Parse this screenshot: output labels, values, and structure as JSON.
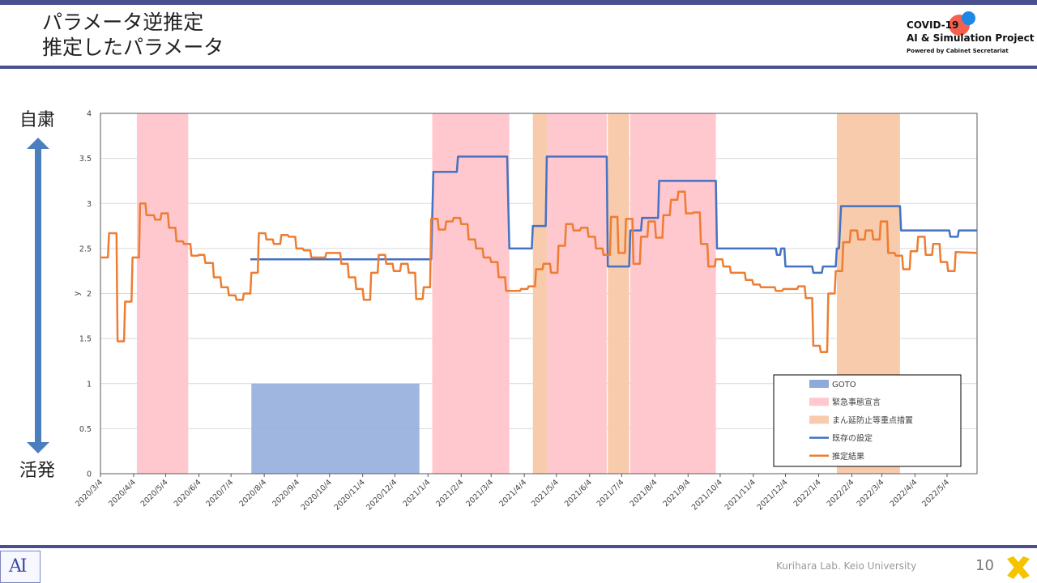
{
  "slide": {
    "title_line1": "パラメータ逆推定",
    "title_line2": "推定したパラメータ",
    "logo_line1": "COVID-19",
    "logo_line2": "AI & Simulation Project",
    "logo_line3": "Powered by Cabinet Secretariat",
    "side_top": "自粛",
    "side_bottom": "活発",
    "footer": "Kurihara Lab. Keio University",
    "page_number": "10",
    "footer_logo": "AI"
  },
  "colors": {
    "frame": "#4a4f8f",
    "goto": "#8eaadb",
    "emergency": "#ffc7ce",
    "priority": "#f8cbad",
    "existing": "#4472c4",
    "estimate": "#ed7d31",
    "arrow": "#4a7ebf"
  },
  "chart_data": {
    "type": "line",
    "ylabel": "y",
    "ylim": [
      0,
      4
    ],
    "yticks": [
      "0",
      "0.5",
      "1",
      "1.5",
      "2",
      "2.5",
      "3",
      "3.5",
      "4"
    ],
    "xlim": [
      "2020-03-04",
      "2022-06-01"
    ],
    "xticks": [
      "2020/3/4",
      "2020/4/4",
      "2020/5/4",
      "2020/6/4",
      "2020/7/4",
      "2020/8/4",
      "2020/9/4",
      "2020/10/4",
      "2020/11/4",
      "2020/12/4",
      "2021/1/4",
      "2021/2/4",
      "2021/3/4",
      "2021/4/4",
      "2021/5/4",
      "2021/6/4",
      "2021/7/4",
      "2021/8/4",
      "2021/9/4",
      "2021/10/4",
      "2021/11/4",
      "2021/12/4",
      "2022/1/4",
      "2022/2/4",
      "2022/3/4",
      "2022/4/4",
      "2022/5/4"
    ],
    "grid": true,
    "legend_position": "bottom-right",
    "legend": [
      "GOTO",
      "緊急事態宣言",
      "まん延防止等重点措置",
      "既存の設定",
      "推定結果"
    ],
    "goto": {
      "name": "GOTO",
      "start": "2020-07-23",
      "end": "2020-12-27",
      "value": 1
    },
    "emergency_periods": [
      {
        "start": "2020-04-07",
        "end": "2020-05-25"
      },
      {
        "start": "2021-01-08",
        "end": "2021-03-21"
      },
      {
        "start": "2021-04-25",
        "end": "2021-06-20"
      },
      {
        "start": "2021-07-12",
        "end": "2021-09-30"
      }
    ],
    "priority_periods": [
      {
        "start": "2021-04-12",
        "end": "2021-04-25"
      },
      {
        "start": "2021-06-21",
        "end": "2021-07-11"
      },
      {
        "start": "2022-01-21",
        "end": "2022-03-21"
      }
    ],
    "series": [
      {
        "name": "既存の設定",
        "points": [
          [
            "2020-07-22",
            2.38
          ],
          [
            "2021-01-07",
            2.38
          ],
          [
            "2021-01-09",
            3.35
          ],
          [
            "2021-01-31",
            3.35
          ],
          [
            "2021-02-01",
            3.52
          ],
          [
            "2021-03-19",
            3.52
          ],
          [
            "2021-03-21",
            2.5
          ],
          [
            "2021-04-11",
            2.5
          ],
          [
            "2021-04-12",
            2.75
          ],
          [
            "2021-04-24",
            2.75
          ],
          [
            "2021-04-25",
            3.52
          ],
          [
            "2021-06-20",
            3.52
          ],
          [
            "2021-06-21",
            2.3
          ],
          [
            "2021-07-11",
            2.3
          ],
          [
            "2021-07-12",
            2.7
          ],
          [
            "2021-07-22",
            2.7
          ],
          [
            "2021-07-23",
            2.84
          ],
          [
            "2021-08-07",
            2.84
          ],
          [
            "2021-08-08",
            3.25
          ],
          [
            "2021-09-30",
            3.25
          ],
          [
            "2021-10-01",
            2.5
          ],
          [
            "2021-11-25",
            2.5
          ],
          [
            "2021-11-26",
            2.43
          ],
          [
            "2021-11-29",
            2.43
          ],
          [
            "2021-11-30",
            2.5
          ],
          [
            "2021-12-03",
            2.5
          ],
          [
            "2021-12-04",
            2.3
          ],
          [
            "2021-12-29",
            2.3
          ],
          [
            "2021-12-30",
            2.23
          ],
          [
            "2022-01-07",
            2.23
          ],
          [
            "2022-01-08",
            2.3
          ],
          [
            "2022-01-20",
            2.3
          ],
          [
            "2022-01-21",
            2.5
          ],
          [
            "2022-01-23",
            2.5
          ],
          [
            "2022-01-25",
            2.97
          ],
          [
            "2022-03-21",
            2.97
          ],
          [
            "2022-03-22",
            2.7
          ],
          [
            "2022-05-06",
            2.7
          ],
          [
            "2022-05-07",
            2.63
          ],
          [
            "2022-05-14",
            2.63
          ],
          [
            "2022-05-15",
            2.7
          ],
          [
            "2022-06-01",
            2.7
          ]
        ]
      },
      {
        "name": "推定結果",
        "points": [
          [
            "2020-03-04",
            2.4
          ],
          [
            "2020-03-11",
            2.4
          ],
          [
            "2020-03-12",
            2.67
          ],
          [
            "2020-03-19",
            2.67
          ],
          [
            "2020-03-20",
            1.47
          ],
          [
            "2020-03-26",
            1.47
          ],
          [
            "2020-03-27",
            1.91
          ],
          [
            "2020-04-02",
            1.91
          ],
          [
            "2020-04-03",
            2.4
          ],
          [
            "2020-04-09",
            2.4
          ],
          [
            "2020-04-10",
            3.0
          ],
          [
            "2020-04-15",
            3.0
          ],
          [
            "2020-04-16",
            2.87
          ],
          [
            "2020-04-23",
            2.87
          ],
          [
            "2020-04-24",
            2.82
          ],
          [
            "2020-04-29",
            2.82
          ],
          [
            "2020-04-30",
            2.89
          ],
          [
            "2020-05-06",
            2.89
          ],
          [
            "2020-05-07",
            2.73
          ],
          [
            "2020-05-13",
            2.73
          ],
          [
            "2020-05-14",
            2.58
          ],
          [
            "2020-05-20",
            2.58
          ],
          [
            "2020-05-21",
            2.55
          ],
          [
            "2020-05-27",
            2.55
          ],
          [
            "2020-05-28",
            2.42
          ],
          [
            "2020-06-03",
            2.42
          ],
          [
            "2020-06-04",
            2.43
          ],
          [
            "2020-06-09",
            2.43
          ],
          [
            "2020-06-10",
            2.34
          ],
          [
            "2020-06-17",
            2.34
          ],
          [
            "2020-06-18",
            2.18
          ],
          [
            "2020-06-24",
            2.18
          ],
          [
            "2020-06-25",
            2.07
          ],
          [
            "2020-07-01",
            2.07
          ],
          [
            "2020-07-02",
            1.98
          ],
          [
            "2020-07-08",
            1.98
          ],
          [
            "2020-07-09",
            1.93
          ],
          [
            "2020-07-15",
            1.93
          ],
          [
            "2020-07-16",
            2.0
          ],
          [
            "2020-07-22",
            2.0
          ],
          [
            "2020-07-23",
            2.23
          ],
          [
            "2020-07-29",
            2.23
          ],
          [
            "2020-07-30",
            2.67
          ],
          [
            "2020-08-05",
            2.67
          ],
          [
            "2020-08-06",
            2.6
          ],
          [
            "2020-08-12",
            2.6
          ],
          [
            "2020-08-13",
            2.55
          ],
          [
            "2020-08-19",
            2.55
          ],
          [
            "2020-08-20",
            2.65
          ],
          [
            "2020-08-26",
            2.65
          ],
          [
            "2020-08-27",
            2.63
          ],
          [
            "2020-09-02",
            2.63
          ],
          [
            "2020-09-03",
            2.5
          ],
          [
            "2020-09-09",
            2.5
          ],
          [
            "2020-09-10",
            2.48
          ],
          [
            "2020-09-16",
            2.48
          ],
          [
            "2020-09-17",
            2.4
          ],
          [
            "2020-09-30",
            2.4
          ],
          [
            "2020-10-01",
            2.45
          ],
          [
            "2020-10-14",
            2.45
          ],
          [
            "2020-10-15",
            2.33
          ],
          [
            "2020-10-21",
            2.33
          ],
          [
            "2020-10-22",
            2.18
          ],
          [
            "2020-10-28",
            2.18
          ],
          [
            "2020-10-29",
            2.05
          ],
          [
            "2020-11-04",
            2.05
          ],
          [
            "2020-11-05",
            1.93
          ],
          [
            "2020-11-11",
            1.93
          ],
          [
            "2020-11-12",
            2.23
          ],
          [
            "2020-11-18",
            2.23
          ],
          [
            "2020-11-19",
            2.43
          ],
          [
            "2020-11-25",
            2.43
          ],
          [
            "2020-11-26",
            2.33
          ],
          [
            "2020-12-02",
            2.33
          ],
          [
            "2020-12-03",
            2.25
          ],
          [
            "2020-12-09",
            2.25
          ],
          [
            "2020-12-10",
            2.33
          ],
          [
            "2020-12-16",
            2.33
          ],
          [
            "2020-12-17",
            2.23
          ],
          [
            "2020-12-23",
            2.23
          ],
          [
            "2020-12-24",
            1.94
          ],
          [
            "2020-12-30",
            1.94
          ],
          [
            "2020-12-31",
            2.07
          ],
          [
            "2021-01-06",
            2.07
          ],
          [
            "2021-01-07",
            2.83
          ],
          [
            "2021-01-13",
            2.83
          ],
          [
            "2021-01-14",
            2.71
          ],
          [
            "2021-01-20",
            2.71
          ],
          [
            "2021-01-21",
            2.8
          ],
          [
            "2021-01-27",
            2.8
          ],
          [
            "2021-01-28",
            2.84
          ],
          [
            "2021-02-03",
            2.84
          ],
          [
            "2021-02-04",
            2.77
          ],
          [
            "2021-02-10",
            2.77
          ],
          [
            "2021-02-11",
            2.6
          ],
          [
            "2021-02-17",
            2.6
          ],
          [
            "2021-02-18",
            2.5
          ],
          [
            "2021-02-24",
            2.5
          ],
          [
            "2021-02-25",
            2.4
          ],
          [
            "2021-03-03",
            2.4
          ],
          [
            "2021-03-04",
            2.35
          ],
          [
            "2021-03-10",
            2.35
          ],
          [
            "2021-03-11",
            2.18
          ],
          [
            "2021-03-17",
            2.18
          ],
          [
            "2021-03-18",
            2.03
          ],
          [
            "2021-03-31",
            2.03
          ],
          [
            "2021-04-01",
            2.05
          ],
          [
            "2021-04-07",
            2.05
          ],
          [
            "2021-04-08",
            2.08
          ],
          [
            "2021-04-14",
            2.08
          ],
          [
            "2021-04-15",
            2.27
          ],
          [
            "2021-04-21",
            2.27
          ],
          [
            "2021-04-22",
            2.33
          ],
          [
            "2021-04-28",
            2.33
          ],
          [
            "2021-04-29",
            2.23
          ],
          [
            "2021-05-05",
            2.23
          ],
          [
            "2021-05-06",
            2.53
          ],
          [
            "2021-05-12",
            2.53
          ],
          [
            "2021-05-13",
            2.77
          ],
          [
            "2021-05-19",
            2.77
          ],
          [
            "2021-05-20",
            2.7
          ],
          [
            "2021-05-26",
            2.7
          ],
          [
            "2021-05-27",
            2.73
          ],
          [
            "2021-06-02",
            2.73
          ],
          [
            "2021-06-03",
            2.63
          ],
          [
            "2021-06-09",
            2.63
          ],
          [
            "2021-06-10",
            2.5
          ],
          [
            "2021-06-16",
            2.5
          ],
          [
            "2021-06-17",
            2.43
          ],
          [
            "2021-06-23",
            2.43
          ],
          [
            "2021-06-24",
            2.85
          ],
          [
            "2021-06-30",
            2.85
          ],
          [
            "2021-07-01",
            2.45
          ],
          [
            "2021-07-07",
            2.45
          ],
          [
            "2021-07-08",
            2.83
          ],
          [
            "2021-07-14",
            2.83
          ],
          [
            "2021-07-15",
            2.33
          ],
          [
            "2021-07-21",
            2.33
          ],
          [
            "2021-07-22",
            2.63
          ],
          [
            "2021-07-28",
            2.63
          ],
          [
            "2021-07-29",
            2.8
          ],
          [
            "2021-08-04",
            2.8
          ],
          [
            "2021-08-05",
            2.62
          ],
          [
            "2021-08-11",
            2.62
          ],
          [
            "2021-08-12",
            2.87
          ],
          [
            "2021-08-18",
            2.87
          ],
          [
            "2021-08-19",
            3.04
          ],
          [
            "2021-08-25",
            3.04
          ],
          [
            "2021-08-26",
            3.13
          ],
          [
            "2021-09-01",
            3.13
          ],
          [
            "2021-09-02",
            2.89
          ],
          [
            "2021-09-08",
            2.89
          ],
          [
            "2021-09-09",
            2.9
          ],
          [
            "2021-09-15",
            2.9
          ],
          [
            "2021-09-16",
            2.55
          ],
          [
            "2021-09-22",
            2.55
          ],
          [
            "2021-09-23",
            2.3
          ],
          [
            "2021-09-29",
            2.3
          ],
          [
            "2021-09-30",
            2.38
          ],
          [
            "2021-10-06",
            2.38
          ],
          [
            "2021-10-07",
            2.3
          ],
          [
            "2021-10-13",
            2.3
          ],
          [
            "2021-10-14",
            2.23
          ],
          [
            "2021-10-27",
            2.23
          ],
          [
            "2021-10-28",
            2.15
          ],
          [
            "2021-11-03",
            2.15
          ],
          [
            "2021-11-04",
            2.1
          ],
          [
            "2021-11-10",
            2.1
          ],
          [
            "2021-11-11",
            2.07
          ],
          [
            "2021-11-24",
            2.07
          ],
          [
            "2021-11-25",
            2.03
          ],
          [
            "2021-12-01",
            2.03
          ],
          [
            "2021-12-02",
            2.05
          ],
          [
            "2021-12-15",
            2.05
          ],
          [
            "2021-12-16",
            2.08
          ],
          [
            "2021-12-22",
            2.08
          ],
          [
            "2021-12-23",
            1.95
          ],
          [
            "2021-12-29",
            1.95
          ],
          [
            "2021-12-30",
            1.42
          ],
          [
            "2022-01-05",
            1.42
          ],
          [
            "2022-01-06",
            1.35
          ],
          [
            "2022-01-12",
            1.35
          ],
          [
            "2022-01-13",
            2.0
          ],
          [
            "2022-01-19",
            2.0
          ],
          [
            "2022-01-20",
            2.25
          ],
          [
            "2022-01-26",
            2.25
          ],
          [
            "2022-01-27",
            2.57
          ],
          [
            "2022-02-02",
            2.57
          ],
          [
            "2022-02-03",
            2.7
          ],
          [
            "2022-02-09",
            2.7
          ],
          [
            "2022-02-10",
            2.6
          ],
          [
            "2022-02-16",
            2.6
          ],
          [
            "2022-02-17",
            2.7
          ],
          [
            "2022-02-23",
            2.7
          ],
          [
            "2022-02-24",
            2.6
          ],
          [
            "2022-03-02",
            2.6
          ],
          [
            "2022-03-03",
            2.8
          ],
          [
            "2022-03-09",
            2.8
          ],
          [
            "2022-03-10",
            2.45
          ],
          [
            "2022-03-16",
            2.45
          ],
          [
            "2022-03-17",
            2.42
          ],
          [
            "2022-03-23",
            2.42
          ],
          [
            "2022-03-24",
            2.27
          ],
          [
            "2022-03-30",
            2.27
          ],
          [
            "2022-03-31",
            2.47
          ],
          [
            "2022-04-06",
            2.47
          ],
          [
            "2022-04-07",
            2.63
          ],
          [
            "2022-04-13",
            2.63
          ],
          [
            "2022-04-14",
            2.43
          ],
          [
            "2022-04-20",
            2.43
          ],
          [
            "2022-04-21",
            2.55
          ],
          [
            "2022-04-27",
            2.55
          ],
          [
            "2022-04-28",
            2.35
          ],
          [
            "2022-05-04",
            2.35
          ],
          [
            "2022-05-05",
            2.25
          ],
          [
            "2022-05-11",
            2.25
          ],
          [
            "2022-05-12",
            2.46
          ],
          [
            "2022-06-01",
            2.45
          ]
        ]
      }
    ]
  }
}
